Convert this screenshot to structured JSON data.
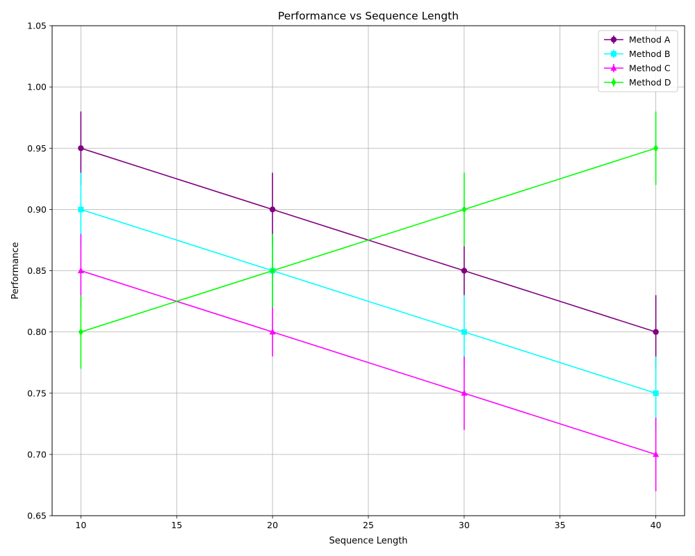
{
  "chart_data": {
    "type": "line",
    "title": "Performance vs Sequence Length",
    "xlabel": "Sequence Length",
    "ylabel": "Performance",
    "xlim": [
      8.5,
      41.5
    ],
    "ylim": [
      0.65,
      1.05
    ],
    "xticks": [
      10,
      15,
      20,
      25,
      30,
      35,
      40
    ],
    "yticks": [
      0.65,
      0.7,
      0.75,
      0.8,
      0.85,
      0.9,
      0.95,
      1.0,
      1.05
    ],
    "grid": true,
    "legend_position": "top-right",
    "x": [
      10,
      20,
      30,
      40
    ],
    "series": [
      {
        "name": "Method A",
        "color": "#800080",
        "marker": "circle",
        "values": [
          0.95,
          0.9,
          0.85,
          0.8
        ],
        "errors": [
          0.03,
          0.03,
          0.02,
          0.03
        ]
      },
      {
        "name": "Method B",
        "color": "#00ffff",
        "marker": "square",
        "values": [
          0.9,
          0.85,
          0.8,
          0.75
        ],
        "errors": [
          0.03,
          0.03,
          0.03,
          0.03
        ]
      },
      {
        "name": "Method C",
        "color": "#ff00ff",
        "marker": "triangle",
        "values": [
          0.85,
          0.8,
          0.75,
          0.7
        ],
        "errors": [
          0.03,
          0.02,
          0.03,
          0.03
        ]
      },
      {
        "name": "Method D",
        "color": "#00ff00",
        "marker": "diamond",
        "values": [
          0.8,
          0.85,
          0.9,
          0.95
        ],
        "errors": [
          0.03,
          0.03,
          0.03,
          0.03
        ]
      }
    ]
  }
}
